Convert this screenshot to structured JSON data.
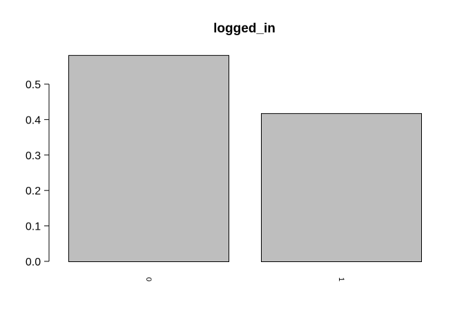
{
  "chart_data": {
    "type": "bar",
    "title": "logged_in",
    "xlabel": "",
    "ylabel": "",
    "categories": [
      "0",
      "1"
    ],
    "values": [
      0.582,
      0.418
    ],
    "ylim": [
      0,
      0.6
    ],
    "yticks": [
      "0.0",
      "0.1",
      "0.2",
      "0.3",
      "0.4",
      "0.5"
    ],
    "bar_fill": "#bebebe",
    "bar_stroke": "#000000",
    "grid": false,
    "legend": "none"
  }
}
